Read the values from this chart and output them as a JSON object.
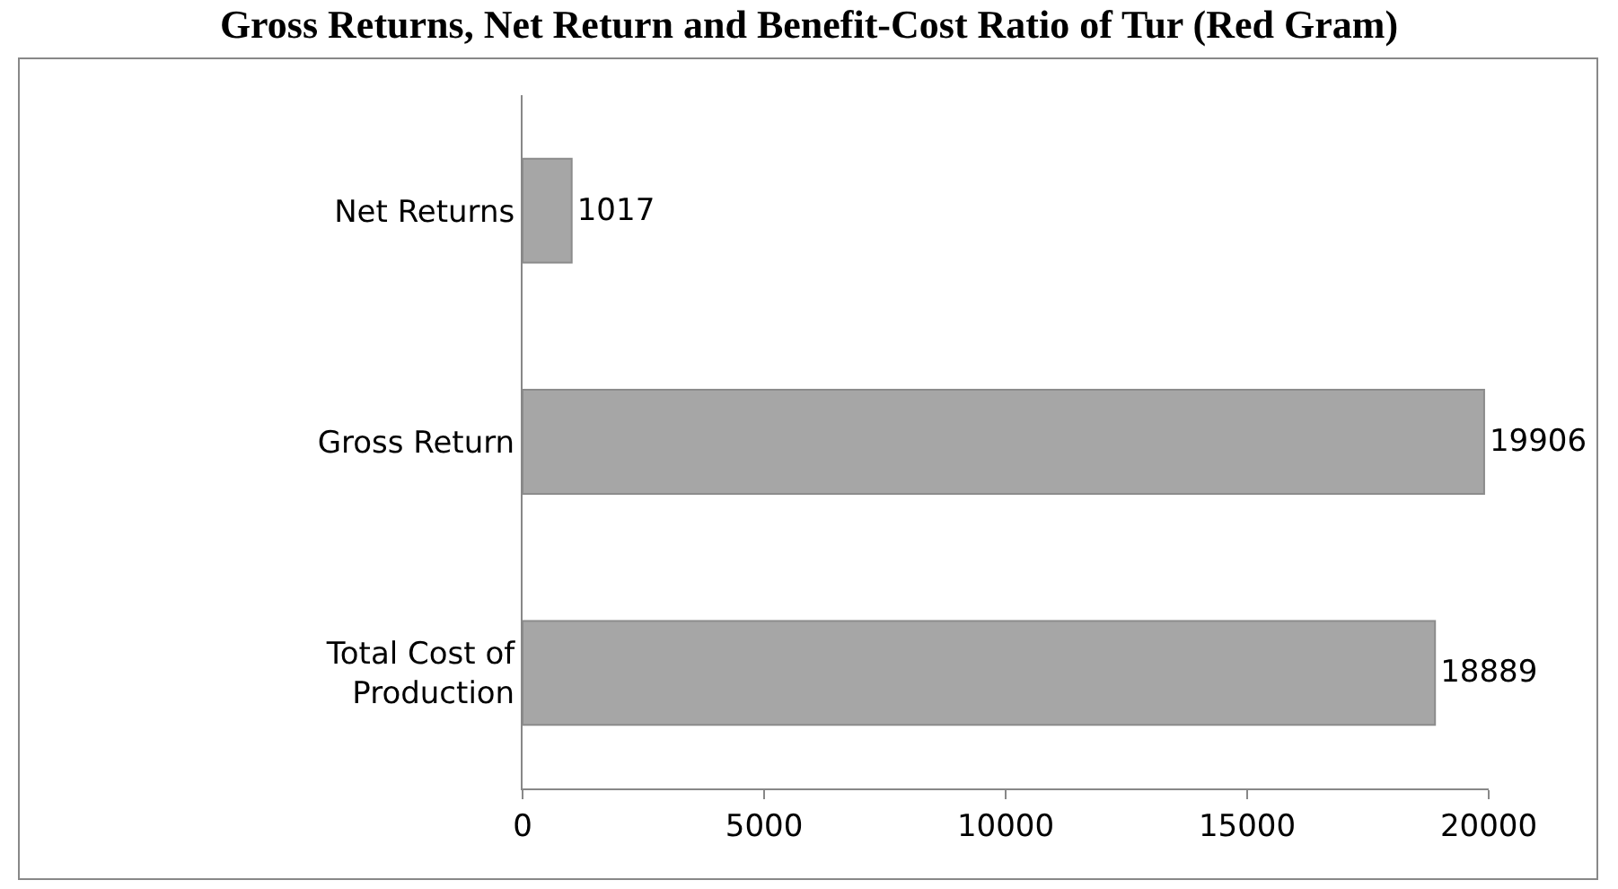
{
  "chart_data": {
    "type": "bar",
    "title": "Gross Returns, Net Return and Benefit-Cost Ratio of Tur (Red Gram)",
    "orientation": "horizontal",
    "categories": [
      "Net Returns",
      "Gross Return",
      "Total Cost of Production"
    ],
    "values": [
      1017,
      19906,
      18889
    ],
    "color": "#a6a6a6",
    "data_labels": true,
    "xlim": [
      0,
      20000
    ],
    "xticks": [
      0,
      5000,
      10000,
      15000,
      20000
    ],
    "grid": false,
    "legend": false
  }
}
